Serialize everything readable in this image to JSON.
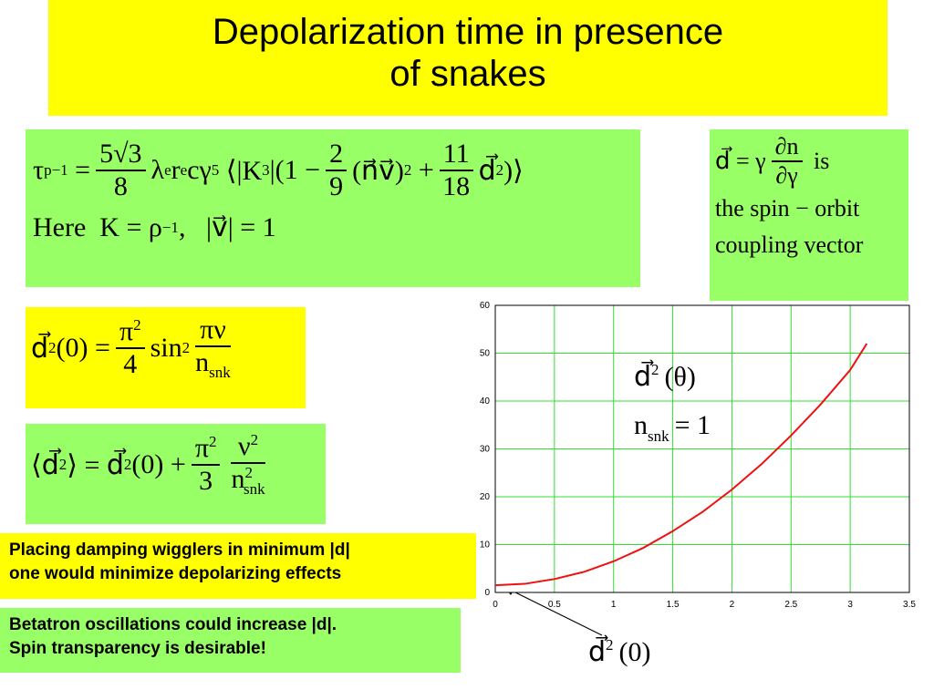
{
  "title": {
    "lines": [
      "Depolarization time in presence",
      "of snakes"
    ]
  },
  "eq_tau": {
    "lhs": "τ",
    "lhs_sub": "p",
    "lhs_sup": "−1",
    "eq": "=",
    "num": "5√3",
    "den": "8",
    "f1": "λ",
    "f1_sub": "e",
    "f2": "r",
    "f2_sub": "e",
    "f3": "cγ",
    "f3_sup": "5",
    "open": "⟨|K",
    "open_sup": "3",
    "mid": "|(1 −",
    "num2": "2",
    "den2": "9",
    "nv": "(n⃗v⃗)",
    "nv_sup": "2",
    "plus": "+",
    "num3": "11",
    "den3": "18",
    "d": "d⃗",
    "d_sup": "2",
    "close": ")⟩",
    "here": "Here  K = ρ",
    "here_sup": "−1",
    "here_rest": ",   |v⃗| = 1"
  },
  "eq_d_def": {
    "lhs": "d⃗ = γ",
    "num": "∂n",
    "den": "∂γ",
    "is": "is",
    "line2": "the spin − orbit",
    "line3": "coupling vector"
  },
  "eq_d0": {
    "lhs": "d⃗",
    "lhs_sup": "2",
    "lhs_rest": "(0) =",
    "num": "π",
    "num_sup": "2",
    "den": "4",
    "sin": "sin",
    "sin_sup": "2",
    "num2": "πν",
    "den2": "n",
    "den2_sub": "snk"
  },
  "eq_davg": {
    "lhs": "⟨d⃗",
    "lhs_sup": "2",
    "lhs_rest": "⟩ = d⃗",
    "rhs_sup": "2",
    "rhs_rest": "(0) +",
    "num": "π",
    "num_sup": "2",
    "den": "3",
    "num2": "ν",
    "num2_sup": "2",
    "den2": "n",
    "den2_sup": "2",
    "den2_sub": "snk"
  },
  "note_wigglers": {
    "lines": [
      "Placing damping wigglers in minimum |d|",
      "one would minimize depolarizing effects"
    ]
  },
  "note_betatron": {
    "lines": [
      "Betatron oscillations could increase |d|.",
      "Spin transparency is desirable!"
    ]
  },
  "chart_data": {
    "type": "line",
    "x": [
      0,
      0.25,
      0.5,
      0.75,
      1,
      1.25,
      1.5,
      1.75,
      2,
      2.25,
      2.5,
      2.75,
      3,
      3.14
    ],
    "series": [
      {
        "color": "#ee1111",
        "values": [
          1.5,
          1.8,
          2.8,
          4.3,
          6.5,
          9.3,
          12.8,
          16.8,
          21.5,
          26.8,
          32.8,
          39.3,
          46.5,
          52
        ]
      }
    ],
    "xlim": [
      0,
      3.5
    ],
    "xticks": [
      0,
      0.5,
      1,
      1.5,
      2,
      2.5,
      3,
      3.5
    ],
    "ylim": [
      0,
      60
    ],
    "yticks": [
      0,
      10,
      20,
      30,
      40,
      50,
      60
    ],
    "grid": true,
    "grid_color": "#33dd33",
    "annotations": [
      {
        "base": "d⃗",
        "sup": "2",
        "rest": "(θ)"
      },
      {
        "base": "n",
        "sub": "snk",
        "rest": "= 1"
      },
      {
        "base": "d⃗",
        "sup": "2",
        "rest": "(0)"
      }
    ]
  }
}
